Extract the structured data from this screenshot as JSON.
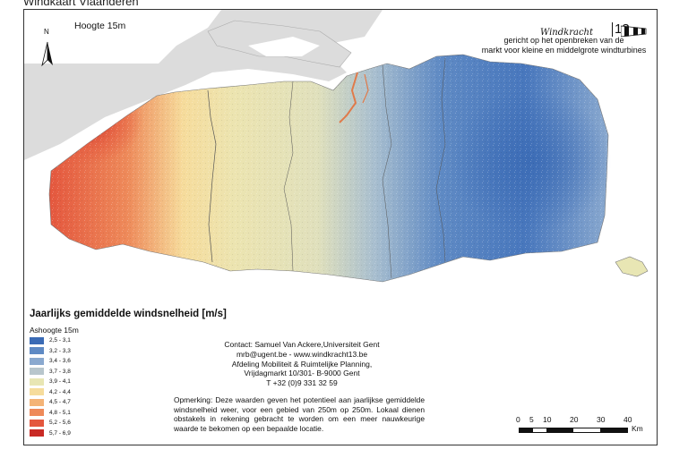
{
  "title": "Windkaart Vlaanderen",
  "height_label": "Hoogte 15m",
  "north_label": "N",
  "brand": {
    "name": "Windkracht",
    "number": "13"
  },
  "tagline": [
    "gericht op het openbreken van de",
    "markt voor kleine en middelgrote windturbines"
  ],
  "legend": {
    "title": "Jaarlijks gemiddelde windsnelheid [m/s]",
    "subtitle": "Ashoogte 15m",
    "classes": [
      {
        "label": "2,5 - 3,1",
        "color": "#3b6bb5"
      },
      {
        "label": "3,2 - 3,3",
        "color": "#5f8ac4"
      },
      {
        "label": "3,4 - 3,6",
        "color": "#8aa9cf"
      },
      {
        "label": "3,7 - 3,8",
        "color": "#b8c6cc"
      },
      {
        "label": "3,9 - 4,1",
        "color": "#e8e6b4"
      },
      {
        "label": "4,2 - 4,4",
        "color": "#f6dc9c"
      },
      {
        "label": "4,5 - 4,7",
        "color": "#f4b477"
      },
      {
        "label": "4,8 - 5,1",
        "color": "#ee8a5a"
      },
      {
        "label": "5,2 - 5,6",
        "color": "#e4573e"
      },
      {
        "label": "5,7 - 6,9",
        "color": "#c92a25"
      }
    ]
  },
  "contact": {
    "line1": "Contact: Samuel Van Ackere,Universiteit Gent",
    "line2": "mrb@ugent.be - www.windkracht13.be",
    "line3": "Afdeling Mobiliteit & Ruimtelijke Planning,",
    "line4": "Vrijdagmarkt 10/301- B-9000 Gent",
    "line5": "T +32 (0)9 331 32 59"
  },
  "note": "Opmerking: Deze waarden geven het potentieel aan jaarlijkse gemiddelde windsnelheid weer, voor een gebied van 250m op 250m. Lokaal dienen obstakels in rekening gebracht te worden om een meer nauwkeurige waarde te bekomen op een bepaalde locatie.",
  "scale": {
    "ticks": [
      "0",
      "5",
      "10",
      "20",
      "30",
      "40"
    ],
    "unit": "Km"
  },
  "colors": {
    "sea": "#dcdcdc",
    "river": "#e07a4a",
    "border": "#555555"
  }
}
